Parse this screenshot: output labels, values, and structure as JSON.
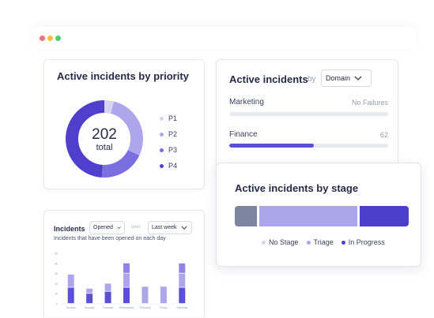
{
  "window": {
    "controls": [
      "red-dot",
      "yellow-dot",
      "green-dot"
    ]
  },
  "priority_card": {
    "title": "Active incidents by priority",
    "total_value": "202",
    "total_label": "total",
    "legend": [
      {
        "label": "P1",
        "color": "#d6d3f2"
      },
      {
        "label": "P2",
        "color": "#ada6ea"
      },
      {
        "label": "P3",
        "color": "#7a6ee0"
      },
      {
        "label": "P4",
        "color": "#4f3fcd"
      }
    ],
    "donut_shares": [
      0.04,
      0.28,
      0.19,
      0.49
    ]
  },
  "domain_card": {
    "title": "Active incidents",
    "by_label": "by",
    "select_value": "Domain",
    "rows": [
      {
        "label": "Marketing",
        "value": "No Failures",
        "fraction": 0
      },
      {
        "label": "Finance",
        "value": "62",
        "fraction": 0.53
      }
    ],
    "colors": {
      "fill": "#5a4fd6",
      "track": "#e9eaf1"
    }
  },
  "stage_card": {
    "title": "Active incidents by stage",
    "segments": [
      {
        "label": "No Stage",
        "share": 0.13,
        "color": "#7d85a1",
        "legend_color": "#d7d9e2"
      },
      {
        "label": "Triage",
        "share": 0.58,
        "color": "#aba5ea",
        "legend_color": "#aba5ea"
      },
      {
        "label": "In Progress",
        "share": 0.29,
        "color": "#4b3fcc",
        "legend_color": "#4b3fcc"
      }
    ]
  },
  "incidents_card": {
    "title": "Incidents",
    "opened_select": "Opened",
    "over_label": "over",
    "period_select": "Last week",
    "subtitle": "Incidents that have been opened on each day",
    "chart_data": {
      "type": "bar",
      "stacked": true,
      "categories": [
        "Sunday",
        "Monday",
        "Tuesday",
        "Wednesday",
        "Thursday",
        "Friday",
        "Saturday"
      ],
      "series": [
        {
          "values": [
            16,
            10,
            12,
            16,
            0,
            0,
            16
          ],
          "color": "#5a4fd6"
        },
        {
          "values": [
            13,
            5,
            8,
            14,
            17,
            17,
            14
          ],
          "color": "#ada6ea"
        },
        {
          "values": [
            0,
            0,
            0,
            10,
            0,
            0,
            10
          ],
          "color": "#8d84e4"
        }
      ],
      "y_ticks": [
        "0",
        "10",
        "20",
        "30",
        "40",
        "50"
      ],
      "ylim": [
        0,
        50
      ]
    }
  }
}
